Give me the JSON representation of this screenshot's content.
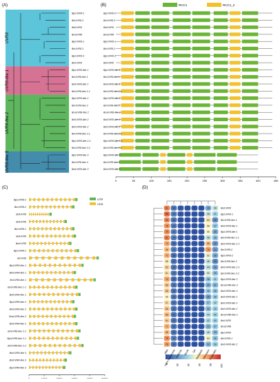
{
  "panels": {
    "a": {
      "label": "(A)",
      "clades": [
        "UVR8",
        "UVR8-like 1",
        "UVR8-like 2",
        "UVR8-like 3"
      ],
      "clade_colors": [
        "#4bbfd6",
        "#d1648a",
        "#4cae4c",
        "#2f7fa3"
      ],
      "genes": [
        "BjuUVR8-2",
        "BnUVR8-2",
        "BolUVR8",
        "BraUVR8",
        "BjuUVR8-1",
        "BnUVR8-1",
        "BjuUVR8-3",
        "BniUVR8",
        "BjuUVR8-like 1",
        "BnUVR8-like 1",
        "BolUVR8-like 1",
        "BnUVR8-like 1-1",
        "BjuUVR8-like 2",
        "BnUVR8-like 2",
        "BraUVR8-like 2",
        "BolUVR8-like 2",
        "BniUVR8-like 2",
        "BnUVR8-like 2-1",
        "BjuUVR8-like 2-1",
        "BnUVR8-like 2-2",
        "BjuUVR8-like 3",
        "BnUVR8-like 3",
        "BolUVR8-like 3"
      ]
    },
    "b": {
      "label": "(B)",
      "legend": [
        "RCC1",
        "RCC1_2"
      ],
      "colors": {
        "RCC1": "#6ab535",
        "RCC1_2": "#f2c12e"
      },
      "axis_ticks": [
        "0",
        "50",
        "100",
        "150",
        "200",
        "250",
        "300",
        "350",
        "400",
        "450"
      ]
    },
    "c": {
      "label": "(C)",
      "legend": [
        "UTR",
        "CDS"
      ],
      "colors": {
        "UTR": "#5cb85c",
        "CDS": "#f2c12e"
      },
      "genes": [
        "BjuUVR8-2",
        "BnUVR8-2",
        "BniUVR8",
        "BolUVR8",
        "BnUVR8-1",
        "BniUVR8",
        "BraUVR8",
        "BjuUVR8-1",
        "AtUVR8",
        "BjuUVR8-like 1",
        "BniUVR8-like 1",
        "BnUVR8-like 1",
        "BnUVR8-like 1-1",
        "BolUVR8-like 1",
        "BjuUVR8-like 2",
        "BniUVR8-like 2",
        "BraUVR8-like 2",
        "BolUVR8-like 2",
        "BnUVR8-like 2-1",
        "BjuUVR8-like 2-1",
        "BnUVR8-like 2-2",
        "BolUVR8-like 3",
        "BniUVR8-like 3",
        "BjuUVR8-like 3"
      ],
      "axis_ticks": [
        "0",
        "1000",
        "2000",
        "3000",
        "4000",
        "5000"
      ]
    },
    "d": {
      "label": "(D)",
      "columns": [
        "ABA",
        "Light responsive",
        "Defense",
        "MeJA",
        "GA",
        "Metabolic",
        "Meristem",
        "Anaerobic"
      ],
      "legend_ticks": [
        "0",
        "20",
        "40",
        "60",
        "80",
        "100"
      ],
      "rows": [
        "BolUVR8",
        "BjuUVR8-1",
        "BnUVR8-like 1",
        "BolUVR8-like 1",
        "BjuUVR8-like 1",
        "BnUVR8-like 1-1",
        "BniUVR8-like 2-1",
        "BnUVR8-2",
        "BjuUVR8-2",
        "BnUVR8-like 2",
        "BniUVR8-like 2-1",
        "BnUVR8-like 2-2",
        "BjuUVR8-like 3",
        "BraUVR8-like 3",
        "BolUVR8-like 3",
        "BolUVR8-like 2",
        "BniUVR8-like 3",
        "BniUVR8-like 2",
        "BraUVR8-like 2",
        "BniUVR8",
        "BraUVR8",
        "BjuUVR8",
        "BnUVR8-1",
        "BolUVR8-like 2"
      ],
      "values": [
        [
          81,
          13,
          4,
          2,
          2,
          2,
          28,
          46
        ],
        [
          85,
          14,
          3,
          1,
          2,
          2,
          46,
          41
        ],
        [
          80,
          12,
          2,
          1,
          2,
          2,
          60,
          20
        ],
        [
          78,
          13,
          3,
          1,
          2,
          1,
          56,
          37
        ],
        [
          79,
          15,
          4,
          2,
          2,
          2,
          55,
          28
        ],
        [
          81,
          14,
          3,
          3,
          2,
          2,
          45,
          35
        ],
        [
          74,
          10,
          3,
          2,
          2,
          2,
          68,
          22
        ],
        [
          68,
          14,
          3,
          1,
          2,
          2,
          76,
          24
        ],
        [
          72,
          10,
          4,
          3,
          2,
          2,
          52,
          28
        ],
        [
          58,
          11,
          3,
          1,
          3,
          2,
          46,
          19
        ],
        [
          63,
          12,
          3,
          2,
          3,
          2,
          44,
          26
        ],
        [
          61,
          13,
          3,
          3,
          3,
          2,
          50,
          35
        ],
        [
          74,
          10,
          4,
          3,
          2,
          2,
          36,
          41
        ],
        [
          66,
          12,
          3,
          2,
          2,
          2,
          30,
          31
        ],
        [
          65,
          12,
          2,
          2,
          3,
          2,
          38,
          36
        ],
        [
          55,
          13,
          3,
          2,
          3,
          2,
          25,
          38
        ],
        [
          61,
          12,
          4,
          2,
          2,
          2,
          37,
          42
        ],
        [
          66,
          12,
          3,
          2,
          2,
          2,
          33,
          40
        ],
        [
          69,
          12,
          4,
          3,
          2,
          2,
          44,
          40
        ],
        [
          64,
          12,
          3,
          2,
          2,
          2,
          42,
          40
        ],
        [
          71,
          12,
          4,
          2,
          2,
          2,
          31,
          37
        ],
        [
          68,
          11,
          3,
          1,
          3,
          2,
          46,
          33
        ],
        [
          79,
          15,
          4,
          2,
          2,
          2,
          53,
          36
        ],
        [
          76,
          12,
          3,
          1,
          2,
          2,
          32,
          39
        ]
      ]
    }
  }
}
